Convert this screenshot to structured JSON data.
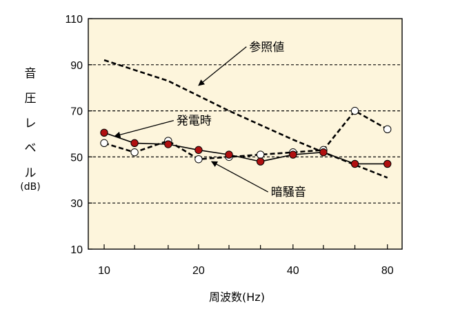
{
  "chart_data": {
    "type": "line",
    "xlabel": "周波数(Hz)",
    "ylabel_chars": [
      "音",
      "圧",
      "レ",
      "ベ",
      "ル"
    ],
    "ylabel_unit": "(dB)",
    "ylim": [
      10,
      110
    ],
    "yticks": [
      10,
      30,
      50,
      70,
      90,
      110
    ],
    "x_scale": "log (1/3 octave bands)",
    "x_range": [
      8.9,
      89.1
    ],
    "xtick_labels": [
      {
        "value": 10,
        "label": "10"
      },
      {
        "value": 20,
        "label": "20"
      },
      {
        "value": 40,
        "label": "40"
      },
      {
        "value": 80,
        "label": "80"
      }
    ],
    "x_minor_ticks": [
      12.5,
      16,
      25,
      31.5,
      50,
      63
    ],
    "grid": "horizontal dashed at 30, 50, 70, 90",
    "plot_background": "#fdf5dc",
    "series": [
      {
        "name": "参照値",
        "style": "dashed",
        "color": "#000000",
        "x": [
          10,
          16,
          25,
          40,
          50,
          80
        ],
        "y": [
          92,
          83,
          70,
          57.5,
          52,
          41
        ]
      },
      {
        "name": "発電時",
        "style": "solid",
        "marker": "filled-circle",
        "color": "#000000",
        "marker_color": "#b01010",
        "x": [
          10,
          12.5,
          16,
          20,
          25,
          31.5,
          40,
          50,
          63,
          80
        ],
        "y": [
          60.5,
          56,
          55.5,
          53,
          51,
          48,
          51,
          52,
          47,
          47
        ]
      },
      {
        "name": "暗騒音",
        "style": "dashed",
        "marker": "open-circle",
        "color": "#000000",
        "x": [
          10,
          12.5,
          16,
          20,
          25,
          31.5,
          40,
          50,
          63,
          80
        ],
        "y": [
          56,
          52,
          57,
          49,
          50,
          51,
          52,
          53,
          70,
          62
        ]
      }
    ],
    "annotations": [
      {
        "text": "参照値",
        "series": "参照値",
        "text_at": [
          29,
          96
        ],
        "arrow_to": [
          20,
          81
        ]
      },
      {
        "text": "発電時",
        "series": "発電時",
        "text_at": [
          17,
          64
        ],
        "arrow_to": [
          10.8,
          59
        ]
      },
      {
        "text": "暗騒音",
        "series": "暗騒音",
        "text_at": [
          34,
          33
        ],
        "arrow_to": [
          22,
          48
        ]
      }
    ]
  }
}
